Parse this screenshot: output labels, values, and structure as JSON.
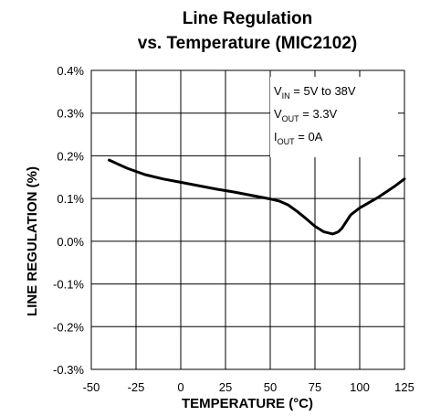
{
  "chart_data": {
    "type": "line",
    "title_line1": "Line Regulation",
    "title_line2": "vs. Temperature (MIC2102)",
    "xlabel": "TEMPERATURE (°C)",
    "ylabel": "LINE REGULATION (%)",
    "xlim": [
      -50,
      125
    ],
    "ylim": [
      -0.3,
      0.4
    ],
    "xticks": [
      "-50",
      "-25",
      "0",
      "25",
      "50",
      "75",
      "100",
      "125"
    ],
    "yticks": [
      "-0.3%",
      "-0.2%",
      "-0.1%",
      "0.0%",
      "0.1%",
      "0.2%",
      "0.3%",
      "0.4%"
    ],
    "grid": true,
    "conditions": [
      {
        "prefix": "V",
        "sub": "IN",
        "suffix": " = 5V to 38V"
      },
      {
        "prefix": "V",
        "sub": "OUT",
        "suffix": " = 3.3V"
      },
      {
        "prefix": "I",
        "sub": "OUT",
        "suffix": " = 0A"
      }
    ],
    "series": [
      {
        "x": [
          -40,
          -30,
          -20,
          -10,
          0,
          10,
          20,
          30,
          40,
          50,
          55,
          60,
          65,
          70,
          75,
          80,
          85,
          88,
          90,
          95,
          100,
          110,
          120,
          125
        ],
        "y": [
          0.19,
          0.171,
          0.156,
          0.146,
          0.138,
          0.13,
          0.122,
          0.115,
          0.107,
          0.099,
          0.094,
          0.085,
          0.07,
          0.053,
          0.035,
          0.022,
          0.017,
          0.022,
          0.03,
          0.062,
          0.078,
          0.102,
          0.13,
          0.146
        ]
      }
    ]
  }
}
